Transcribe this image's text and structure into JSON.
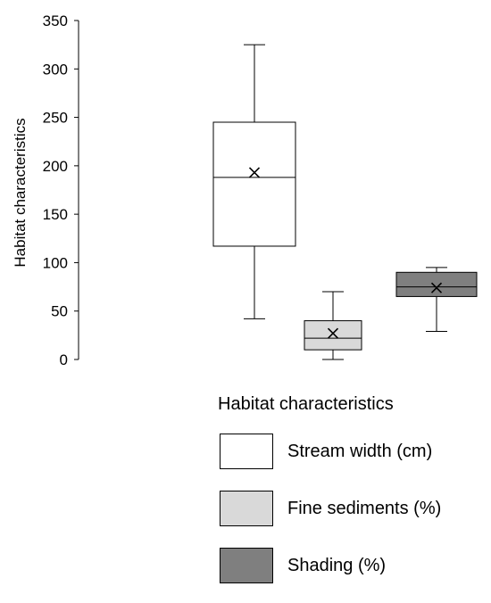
{
  "chart_data": {
    "type": "box",
    "title": "",
    "xlabel": "",
    "ylabel": "Habitat characteristics",
    "ylim": [
      0,
      350
    ],
    "yticks": [
      "0",
      "50",
      "100",
      "150",
      "200",
      "250",
      "300",
      "350"
    ],
    "grid": false,
    "legend_placement": "bottom",
    "legend_title": "Habitat characteristics",
    "series": [
      {
        "name": "Stream width (cm)",
        "color": "#ffffff",
        "min": 42,
        "q1": 117,
        "median": 188,
        "q3": 245,
        "max": 325,
        "mean": 193
      },
      {
        "name": "Fine sediments (%)",
        "color": "#d9d9d9",
        "min": 0,
        "q1": 10,
        "median": 22,
        "q3": 40,
        "max": 70,
        "mean": 27
      },
      {
        "name": "Shading (%)",
        "color": "#7f7f7f",
        "min": 29,
        "q1": 65,
        "median": 75,
        "q3": 90,
        "max": 95,
        "mean": 74
      }
    ]
  }
}
